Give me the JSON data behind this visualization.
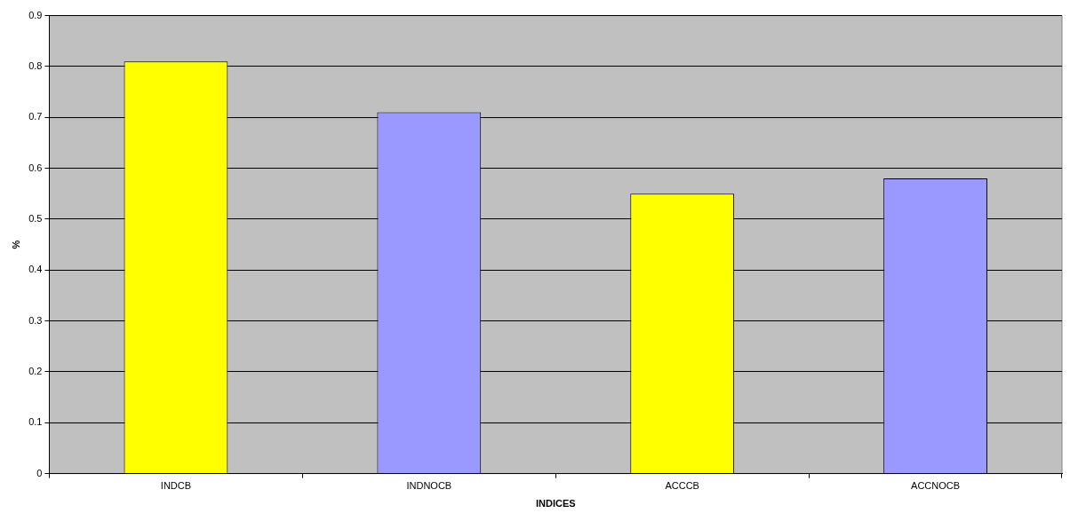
{
  "chart_data": {
    "type": "bar",
    "xlabel": "INDICES",
    "ylabel": "%",
    "categories": [
      "INDCB",
      "INDNOCB",
      "ACCCB",
      "ACCNOCB"
    ],
    "values": [
      0.81,
      0.71,
      0.55,
      0.58
    ],
    "colors": [
      "#ffff00",
      "#9999ff",
      "#ffff00",
      "#9999ff"
    ],
    "ylim": [
      0,
      0.9
    ],
    "yticks": [
      0,
      0.1,
      0.2,
      0.3,
      0.4,
      0.5,
      0.6,
      0.7,
      0.8,
      0.9
    ],
    "grid": "y",
    "legend": false
  }
}
